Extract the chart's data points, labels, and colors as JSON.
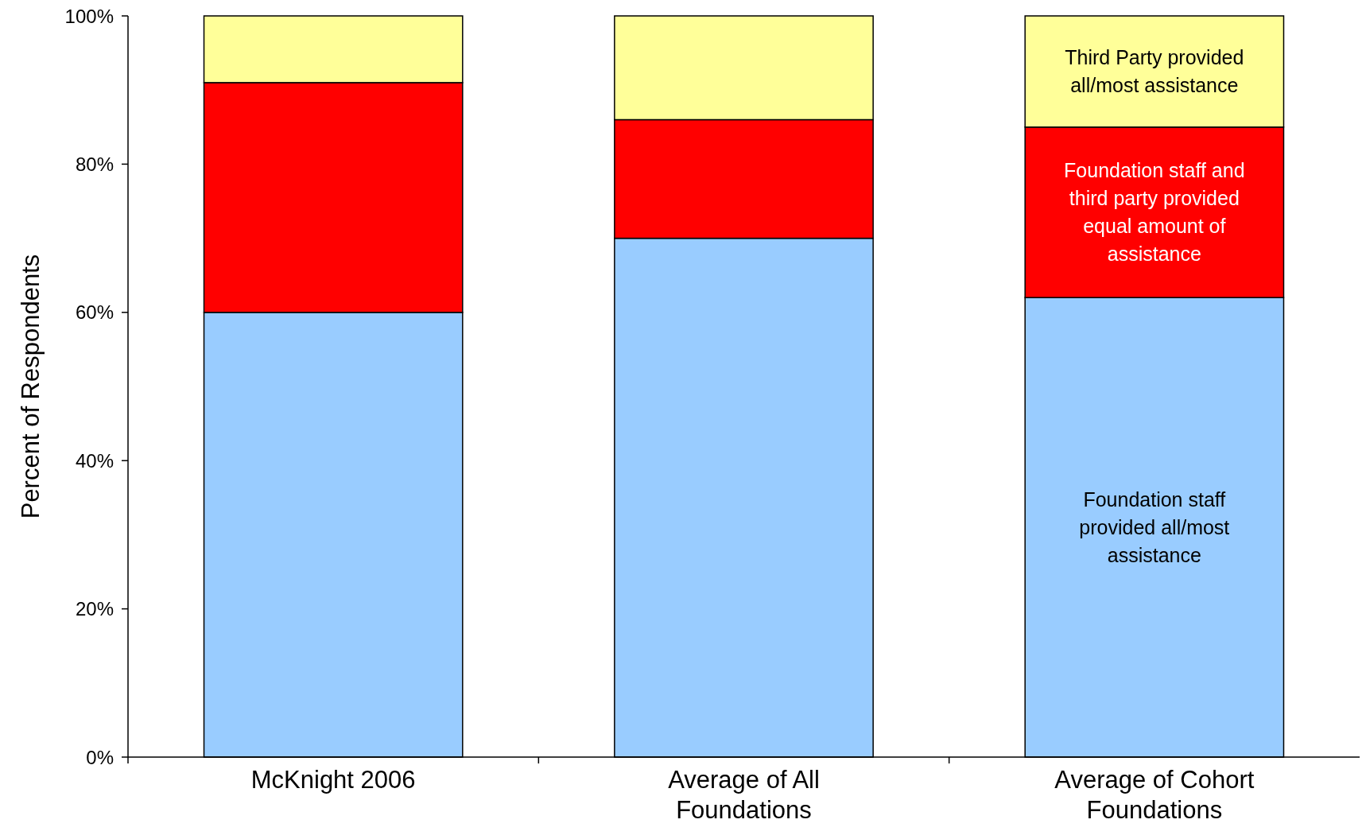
{
  "chart_data": {
    "type": "bar",
    "stacked": true,
    "ylabel": "Percent of Respondents",
    "categories": [
      "McKnight 2006",
      "Average of All Foundations",
      "Average of Cohort Foundations"
    ],
    "series": [
      {
        "name": "Foundation staff provided all/most assistance",
        "color": "#99ccff",
        "values": [
          60,
          70,
          62
        ]
      },
      {
        "name": "Foundation staff and third party provided equal amount of assistance",
        "color": "#ff0000",
        "values": [
          31,
          16,
          23
        ]
      },
      {
        "name": "Third Party provided all/most assistance",
        "color": "#ffff99",
        "values": [
          9,
          14,
          15
        ]
      }
    ],
    "ylim": [
      0,
      100
    ],
    "yticks": [
      {
        "value": 0,
        "label": "0%"
      },
      {
        "value": 20,
        "label": "20%"
      },
      {
        "value": 40,
        "label": "40%"
      },
      {
        "value": 60,
        "label": "60%"
      },
      {
        "value": 80,
        "label": "80%"
      },
      {
        "value": 100,
        "label": "100%"
      }
    ]
  }
}
